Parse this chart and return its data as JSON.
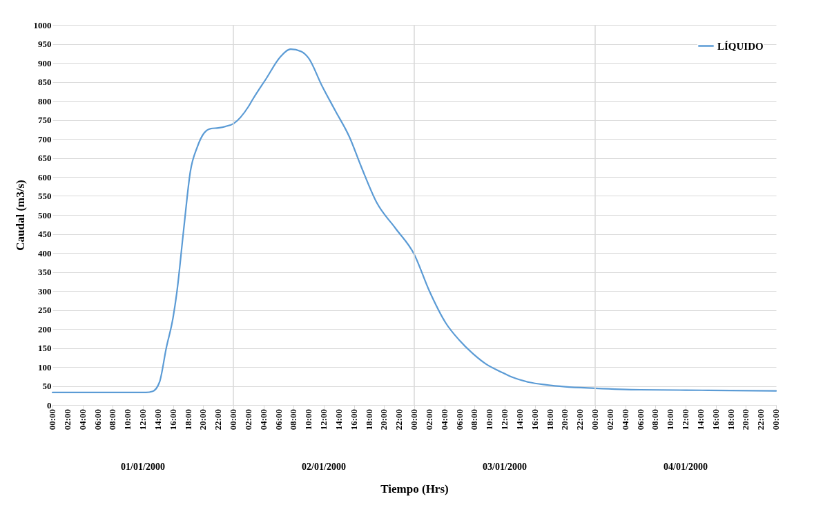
{
  "chart_data": {
    "type": "line",
    "xlabel": "Tiempo (Hrs)",
    "ylabel": "Caudal (m3/s)",
    "legend": "top right",
    "grid": "y",
    "marker": "none",
    "line_style": "solid",
    "xlim": [
      "2000-01-01T00:00",
      "2000-01-05T00:00"
    ],
    "ylim": [
      0,
      1000
    ],
    "yticks": [
      0,
      50,
      100,
      150,
      200,
      250,
      300,
      350,
      400,
      450,
      500,
      550,
      600,
      650,
      700,
      750,
      800,
      850,
      900,
      950,
      1000
    ],
    "xticks": [
      {
        "value": "2000-01-01T00:00",
        "label": "00:00"
      },
      {
        "value": "2000-01-01T02:00",
        "label": "02:00"
      },
      {
        "value": "2000-01-01T04:00",
        "label": "04:00"
      },
      {
        "value": "2000-01-01T06:00",
        "label": "06:00"
      },
      {
        "value": "2000-01-01T08:00",
        "label": "08:00"
      },
      {
        "value": "2000-01-01T10:00",
        "label": "10:00"
      },
      {
        "value": "2000-01-01T12:00",
        "label": "12:00"
      },
      {
        "value": "2000-01-01T14:00",
        "label": "14:00"
      },
      {
        "value": "2000-01-01T16:00",
        "label": "16:00"
      },
      {
        "value": "2000-01-01T18:00",
        "label": "18:00"
      },
      {
        "value": "2000-01-01T20:00",
        "label": "20:00"
      },
      {
        "value": "2000-01-01T22:00",
        "label": "22:00"
      },
      {
        "value": "2000-01-02T00:00",
        "label": "00:00"
      },
      {
        "value": "2000-01-02T02:00",
        "label": "02:00"
      },
      {
        "value": "2000-01-02T04:00",
        "label": "04:00"
      },
      {
        "value": "2000-01-02T06:00",
        "label": "06:00"
      },
      {
        "value": "2000-01-02T08:00",
        "label": "08:00"
      },
      {
        "value": "2000-01-02T10:00",
        "label": "10:00"
      },
      {
        "value": "2000-01-02T12:00",
        "label": "12:00"
      },
      {
        "value": "2000-01-02T14:00",
        "label": "14:00"
      },
      {
        "value": "2000-01-02T16:00",
        "label": "16:00"
      },
      {
        "value": "2000-01-02T18:00",
        "label": "18:00"
      },
      {
        "value": "2000-01-02T20:00",
        "label": "20:00"
      },
      {
        "value": "2000-01-02T22:00",
        "label": "22:00"
      },
      {
        "value": "2000-01-03T00:00",
        "label": "00:00"
      },
      {
        "value": "2000-01-03T02:00",
        "label": "02:00"
      },
      {
        "value": "2000-01-03T04:00",
        "label": "04:00"
      },
      {
        "value": "2000-01-03T06:00",
        "label": "06:00"
      },
      {
        "value": "2000-01-03T08:00",
        "label": "08:00"
      },
      {
        "value": "2000-01-03T10:00",
        "label": "10:00"
      },
      {
        "value": "2000-01-03T12:00",
        "label": "12:00"
      },
      {
        "value": "2000-01-03T14:00",
        "label": "14:00"
      },
      {
        "value": "2000-01-03T16:00",
        "label": "16:00"
      },
      {
        "value": "2000-01-03T18:00",
        "label": "18:00"
      },
      {
        "value": "2000-01-03T20:00",
        "label": "20:00"
      },
      {
        "value": "2000-01-03T22:00",
        "label": "22:00"
      },
      {
        "value": "2000-01-04T00:00",
        "label": "00:00"
      },
      {
        "value": "2000-01-04T02:00",
        "label": "02:00"
      },
      {
        "value": "2000-01-04T04:00",
        "label": "04:00"
      },
      {
        "value": "2000-01-04T06:00",
        "label": "06:00"
      },
      {
        "value": "2000-01-04T08:00",
        "label": "08:00"
      },
      {
        "value": "2000-01-04T10:00",
        "label": "10:00"
      },
      {
        "value": "2000-01-04T12:00",
        "label": "12:00"
      },
      {
        "value": "2000-01-04T14:00",
        "label": "14:00"
      },
      {
        "value": "2000-01-04T16:00",
        "label": "16:00"
      },
      {
        "value": "2000-01-04T18:00",
        "label": "18:00"
      },
      {
        "value": "2000-01-04T20:00",
        "label": "20:00"
      },
      {
        "value": "2000-01-04T22:00",
        "label": "22:00"
      },
      {
        "value": "2000-01-05T00:00",
        "label": "00:00"
      }
    ],
    "ref_lines": [
      {
        "axis": "x",
        "value": "2000-01-02T00:00",
        "color": "#d9d9d9"
      },
      {
        "axis": "x",
        "value": "2000-01-03T00:00",
        "color": "#d9d9d9"
      },
      {
        "axis": "x",
        "value": "2000-01-04T00:00",
        "color": "#d9d9d9"
      }
    ],
    "annotations": [
      "01/01/2000",
      "02/01/2000",
      "03/01/2000",
      "04/01/2000"
    ],
    "series": [
      {
        "name": "LÍQUIDO",
        "color": "#5b9bd5",
        "x": [
          "2000-01-01T00:00",
          "2000-01-01T06:00",
          "2000-01-01T12:00",
          "2000-01-01T12:24",
          "2000-01-01T13:18",
          "2000-01-01T14:12",
          "2000-01-01T15:06",
          "2000-01-01T16:00",
          "2000-01-01T16:30",
          "2000-01-01T17:24",
          "2000-01-01T18:18",
          "2000-01-01T19:12",
          "2000-01-01T20:06",
          "2000-01-01T21:00",
          "2000-01-01T22:00",
          "2000-01-01T23:00",
          "2000-01-02T00:00",
          "2000-01-02T02:00",
          "2000-01-02T02:36",
          "2000-01-02T04:24",
          "2000-01-02T06:12",
          "2000-01-02T07:36",
          "2000-01-02T09:00",
          "2000-01-02T10:00",
          "2000-01-02T11:42",
          "2000-01-02T13:30",
          "2000-01-02T15:24",
          "2000-01-02T17:00",
          "2000-01-02T19:00",
          "2000-01-02T21:30",
          "2000-01-03T00:00",
          "2000-01-03T02:00",
          "2000-01-03T04:12",
          "2000-01-03T06:00",
          "2000-01-03T07:54",
          "2000-01-03T09:30",
          "2000-01-03T11:30",
          "2000-01-03T13:00",
          "2000-01-03T15:12",
          "2000-01-03T17:30",
          "2000-01-03T20:00",
          "2000-01-04T00:00",
          "2000-01-04T06:00",
          "2000-01-04T12:00",
          "2000-01-04T18:00",
          "2000-01-05T00:00"
        ],
        "values": [
          33,
          33,
          33,
          33,
          36,
          60,
          150,
          230,
          296,
          460,
          615,
          678,
          715,
          727,
          729,
          733,
          740,
          785,
          805,
          860,
          915,
          936,
          930,
          912,
          842,
          775,
          705,
          625,
          533,
          465,
          396,
          300,
          215,
          170,
          133,
          108,
          87,
          73,
          60,
          53,
          48,
          44,
          40,
          39,
          38,
          37
        ]
      }
    ]
  }
}
